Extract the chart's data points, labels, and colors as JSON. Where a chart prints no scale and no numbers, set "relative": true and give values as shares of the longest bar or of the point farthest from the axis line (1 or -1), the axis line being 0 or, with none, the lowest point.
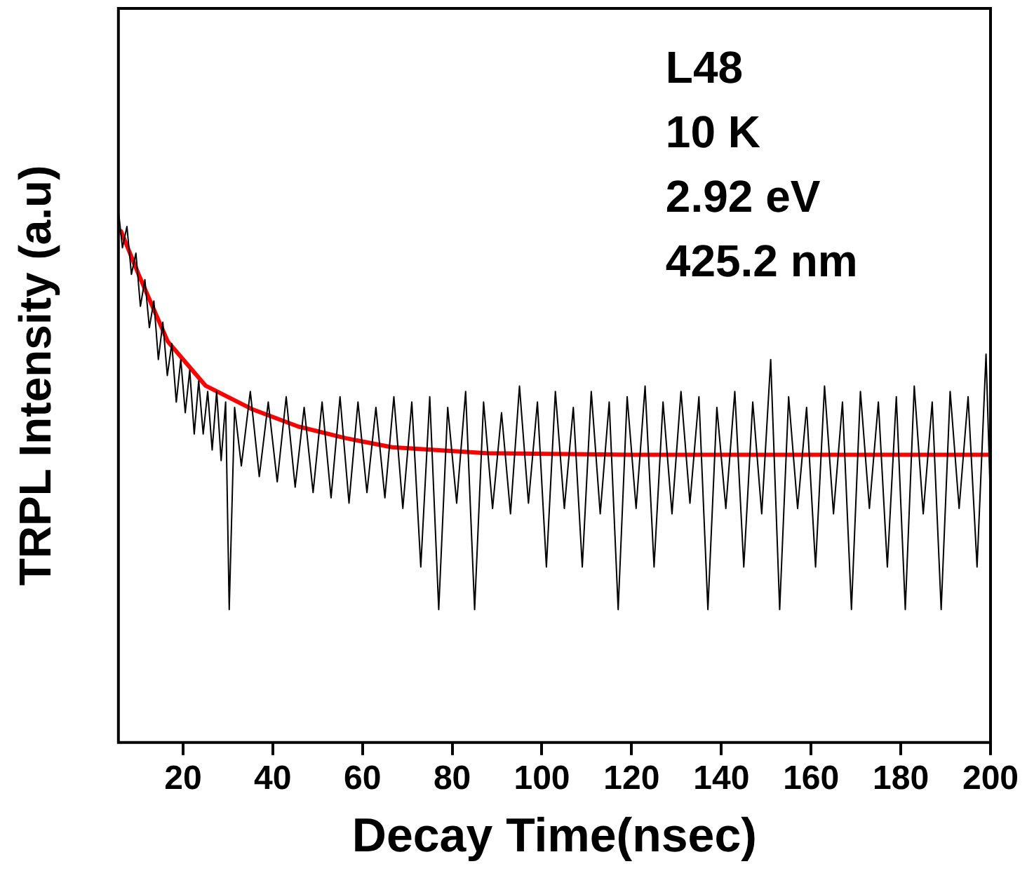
{
  "chart_data": {
    "type": "line",
    "xlabel": "Decay Time(nsec)",
    "ylabel": "TRPL Intensity (a.u)",
    "relative": true,
    "xlim": [
      5.6,
      200
    ],
    "xticks": [
      20,
      40,
      60,
      80,
      100,
      120,
      140,
      160,
      180,
      200
    ],
    "grid": false,
    "legend": false,
    "marker": "none",
    "annotations": [
      "L48",
      "10 K",
      "2.92 eV",
      "425.2 nm"
    ],
    "series": [
      {
        "color": "#000000",
        "x": [
          5.6,
          6.5,
          7.5,
          8.5,
          9.5,
          10.5,
          11.5,
          12.5,
          13.5,
          14.5,
          15.5,
          16.5,
          17.5,
          18.5,
          19.5,
          20.5,
          21.5,
          22.5,
          23.5,
          24.5,
          25.5,
          26.5,
          27.5,
          28.5,
          29.5,
          30.3,
          31.5,
          33,
          35,
          37,
          39,
          41,
          43,
          45,
          47,
          49,
          51,
          53,
          55,
          57,
          59,
          61,
          63,
          65,
          67,
          69,
          71,
          73,
          75,
          77,
          79,
          81,
          83,
          85,
          87,
          89,
          91,
          93,
          95,
          97,
          99,
          101,
          103,
          105,
          107,
          109,
          111,
          113,
          115,
          117,
          119,
          121,
          123,
          125,
          127,
          129,
          131,
          133,
          135,
          137,
          139,
          141,
          143,
          145,
          147,
          149,
          151,
          153,
          155,
          157,
          159,
          161,
          163,
          165,
          167,
          169,
          171,
          173,
          175,
          177,
          179,
          181,
          183,
          185,
          187,
          189,
          191,
          193,
          195,
          197,
          199,
          200
        ],
        "values": [
          1.0,
          0.93,
          0.97,
          0.88,
          0.92,
          0.82,
          0.87,
          0.78,
          0.83,
          0.72,
          0.79,
          0.69,
          0.75,
          0.64,
          0.72,
          0.62,
          0.7,
          0.58,
          0.68,
          0.58,
          0.66,
          0.55,
          0.66,
          0.53,
          0.64,
          0.25,
          0.63,
          0.52,
          0.66,
          0.5,
          0.64,
          0.49,
          0.65,
          0.48,
          0.63,
          0.47,
          0.64,
          0.46,
          0.65,
          0.45,
          0.64,
          0.47,
          0.63,
          0.46,
          0.65,
          0.44,
          0.64,
          0.33,
          0.65,
          0.25,
          0.63,
          0.45,
          0.66,
          0.25,
          0.64,
          0.44,
          0.62,
          0.43,
          0.67,
          0.45,
          0.64,
          0.33,
          0.66,
          0.44,
          0.63,
          0.33,
          0.66,
          0.43,
          0.64,
          0.25,
          0.65,
          0.44,
          0.67,
          0.33,
          0.64,
          0.43,
          0.66,
          0.45,
          0.65,
          0.25,
          0.63,
          0.44,
          0.66,
          0.33,
          0.64,
          0.43,
          0.72,
          0.25,
          0.65,
          0.44,
          0.63,
          0.33,
          0.67,
          0.43,
          0.64,
          0.25,
          0.66,
          0.44,
          0.64,
          0.33,
          0.65,
          0.25,
          0.67,
          0.43,
          0.64,
          0.25,
          0.66,
          0.44,
          0.65,
          0.33,
          0.73,
          0.45
        ]
      },
      {
        "color": "#ff0000",
        "x": [
          6.2,
          10.3,
          16.6,
          25,
          35.3,
          45.7,
          56.3,
          66.6,
          87.6,
          120,
          160,
          200
        ],
        "values": [
          0.961,
          0.876,
          0.754,
          0.671,
          0.627,
          0.594,
          0.572,
          0.555,
          0.544,
          0.541,
          0.541,
          0.541
        ]
      }
    ]
  }
}
